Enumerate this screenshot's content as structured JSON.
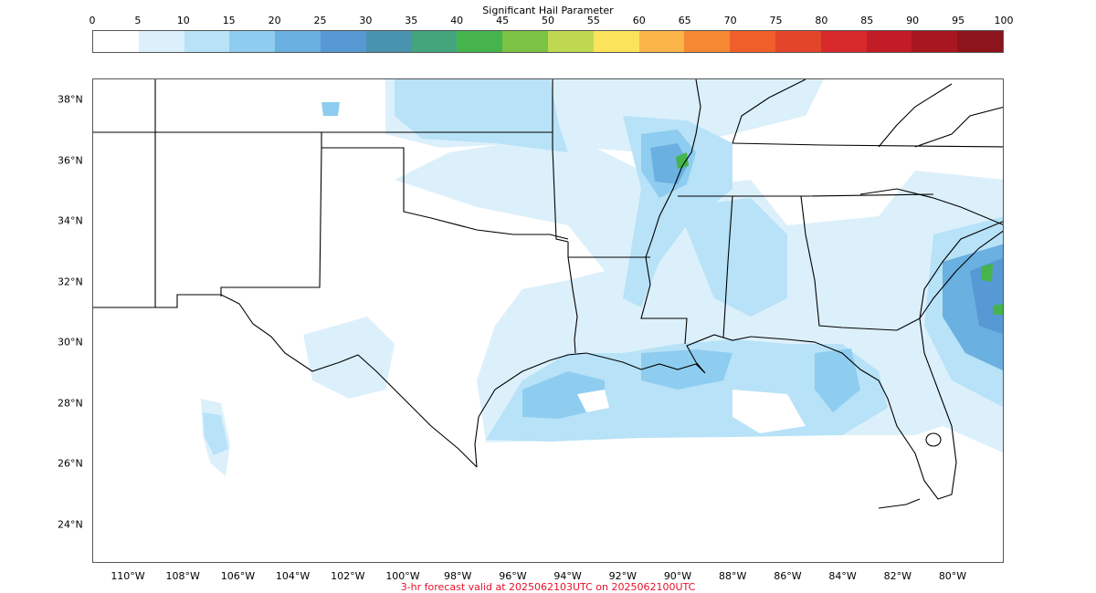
{
  "colorbar": {
    "title": "Significant Hail Parameter",
    "ticks": [
      "0",
      "5",
      "10",
      "15",
      "20",
      "25",
      "30",
      "35",
      "40",
      "45",
      "50",
      "55",
      "60",
      "65",
      "70",
      "75",
      "80",
      "85",
      "90",
      "95",
      "100"
    ],
    "colors": [
      "#ffffff",
      "#dcf0fb",
      "#b7e2f7",
      "#8ecdef",
      "#6ab0e0",
      "#5799d4",
      "#4893b0",
      "#44a57d",
      "#46b44c",
      "#7cc244",
      "#bfd852",
      "#fbe45c",
      "#f9b547",
      "#f58933",
      "#f05e2a",
      "#e2452a",
      "#d7282b",
      "#c21c26",
      "#a8161f",
      "#8d141b"
    ]
  },
  "map": {
    "lat_labels": [
      "38°N",
      "36°N",
      "34°N",
      "32°N",
      "30°N",
      "28°N",
      "26°N",
      "24°N"
    ],
    "lon_labels": [
      "110°W",
      "108°W",
      "106°W",
      "104°W",
      "102°W",
      "100°W",
      "98°W",
      "96°W",
      "94°W",
      "92°W",
      "90°W",
      "88°W",
      "86°W",
      "84°W",
      "82°W",
      "80°W"
    ],
    "field_colors": {
      "light": "#dcf0fb",
      "medium": "#b7e2f7",
      "mid": "#8ecdef",
      "dark": "#6ab0e0",
      "darker": "#5799d4",
      "green": "#46b44c"
    }
  },
  "caption": "3-hr forecast valid at 2025062103UTC on 2025062100UTC"
}
